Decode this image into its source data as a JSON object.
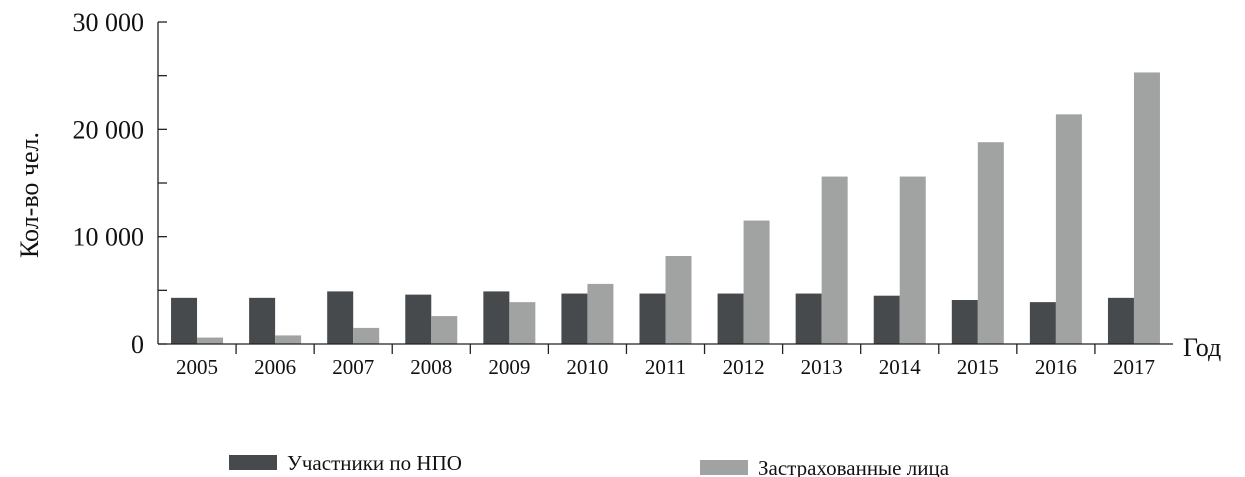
{
  "chart_data": {
    "type": "bar",
    "xlabel": "Год",
    "ylabel": "Кол-во чел.",
    "categories": [
      "2005",
      "2006",
      "2007",
      "2008",
      "2009",
      "2010",
      "2011",
      "2012",
      "2013",
      "2014",
      "2015",
      "2016",
      "2017"
    ],
    "series": [
      {
        "name": "Участники по НПО",
        "color": "#464a4c",
        "values": [
          4300,
          4300,
          4900,
          4600,
          4900,
          4700,
          4700,
          4700,
          4700,
          4500,
          4100,
          3900,
          4300
        ]
      },
      {
        "name": "Застрахованные лица",
        "color": "#a1a3a3",
        "values": [
          600,
          800,
          1500,
          2600,
          3900,
          5600,
          8200,
          11500,
          15600,
          15600,
          18800,
          21400,
          25300
        ]
      }
    ],
    "ylim": [
      0,
      30000
    ],
    "y_ticks": [
      {
        "value": 0,
        "label": "0"
      },
      {
        "value": 10000,
        "label": "10 000"
      },
      {
        "value": 20000,
        "label": "20 000"
      },
      {
        "value": 30000,
        "label": "30 000"
      }
    ],
    "y_minor_ticks": [
      5000,
      15000,
      25000
    ],
    "grid": false,
    "legend_position": "bottom"
  }
}
